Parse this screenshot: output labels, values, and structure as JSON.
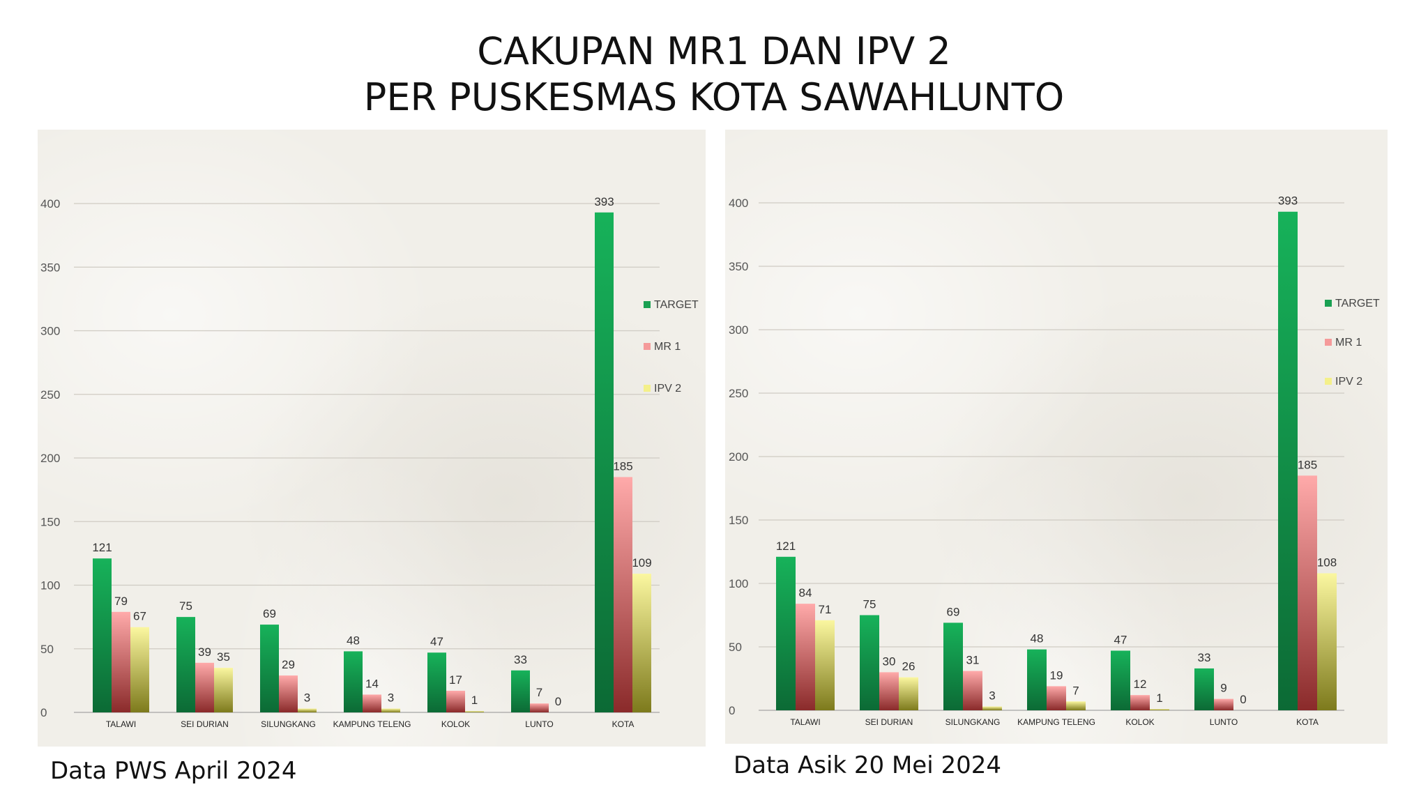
{
  "title": {
    "line1": "CAKUPAN MR1 DAN IPV 2",
    "line2": "PER PUSKESMAS KOTA SAWAHLUNTO"
  },
  "colors": {
    "target": "#1aa052",
    "mr1": "#f59a9a",
    "ipv2": "#f4f08a"
  },
  "chart_data": [
    {
      "type": "bar",
      "caption": "Data PWS April 2024",
      "categories": [
        "TALAWI",
        "SEI DURIAN",
        "SILUNGKANG",
        "KAMPUNG TELENG",
        "KOLOK",
        "LUNTO",
        "KOTA"
      ],
      "series": [
        {
          "name": "TARGET",
          "values": [
            121,
            75,
            69,
            48,
            47,
            33,
            393
          ]
        },
        {
          "name": "MR 1",
          "values": [
            79,
            39,
            29,
            14,
            17,
            7,
            185
          ]
        },
        {
          "name": "IPV 2",
          "values": [
            67,
            35,
            3,
            3,
            1,
            0,
            109
          ]
        }
      ],
      "yticks": [
        0,
        50,
        100,
        150,
        200,
        250,
        300,
        350,
        400
      ],
      "ylim": [
        0,
        400
      ],
      "grid": true,
      "legend": "right"
    },
    {
      "type": "bar",
      "caption": "Data Asik 20 Mei 2024",
      "categories": [
        "TALAWI",
        "SEI DURIAN",
        "SILUNGKANG",
        "KAMPUNG TELENG",
        "KOLOK",
        "LUNTO",
        "KOTA"
      ],
      "series": [
        {
          "name": "TARGET",
          "values": [
            121,
            75,
            69,
            48,
            47,
            33,
            393
          ]
        },
        {
          "name": "MR 1",
          "values": [
            84,
            30,
            31,
            19,
            12,
            9,
            185
          ]
        },
        {
          "name": "IPV 2",
          "values": [
            71,
            26,
            3,
            7,
            1,
            0,
            108
          ]
        }
      ],
      "yticks": [
        0,
        50,
        100,
        150,
        200,
        250,
        300,
        350,
        400
      ],
      "ylim": [
        0,
        400
      ],
      "grid": true,
      "legend": "right"
    }
  ]
}
